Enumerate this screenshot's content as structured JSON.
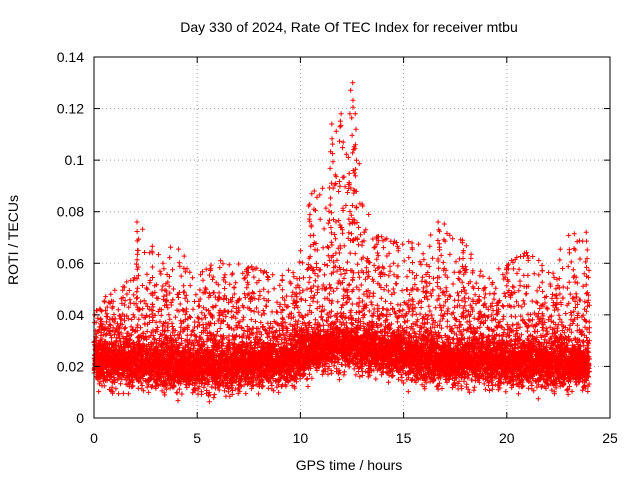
{
  "chart_data": {
    "type": "scatter",
    "title": "Day 330 of 2024, Rate Of TEC Index for receiver mtbu",
    "xlabel": "GPS time / hours",
    "ylabel": "ROTI / TECUs",
    "xlim": [
      0,
      25
    ],
    "ylim": [
      0,
      0.14
    ],
    "x_ticks": [
      0,
      5,
      10,
      15,
      20,
      25
    ],
    "x_tick_labels": [
      "0",
      "5",
      "10",
      "15",
      "20",
      "25"
    ],
    "y_ticks": [
      0,
      0.02,
      0.04,
      0.06,
      0.08,
      0.1,
      0.12,
      0.14
    ],
    "y_tick_labels": [
      "0",
      "0.02",
      "0.04",
      "0.06",
      "0.08",
      "0.1",
      "0.12",
      "0.14"
    ],
    "grid": true,
    "marker": "+",
    "point_color": "#ff0000",
    "data_hours": [
      0,
      24
    ],
    "envelope": {
      "x": [
        0,
        1,
        2,
        2.2,
        3,
        4,
        5,
        6,
        7,
        8,
        9,
        10,
        10.5,
        11,
        11.5,
        12,
        12.5,
        13,
        13.5,
        14,
        15,
        16,
        17,
        18,
        19,
        20,
        21,
        22,
        23,
        24
      ],
      "baseline": [
        0.022,
        0.021,
        0.021,
        0.021,
        0.021,
        0.02,
        0.02,
        0.019,
        0.02,
        0.021,
        0.021,
        0.024,
        0.026,
        0.027,
        0.028,
        0.028,
        0.028,
        0.027,
        0.026,
        0.026,
        0.024,
        0.023,
        0.022,
        0.022,
        0.022,
        0.021,
        0.021,
        0.021,
        0.021,
        0.021
      ],
      "upper": [
        0.045,
        0.05,
        0.055,
        0.076,
        0.065,
        0.068,
        0.055,
        0.063,
        0.06,
        0.058,
        0.055,
        0.065,
        0.088,
        0.09,
        0.105,
        0.12,
        0.13,
        0.09,
        0.073,
        0.07,
        0.068,
        0.07,
        0.076,
        0.068,
        0.055,
        0.06,
        0.065,
        0.058,
        0.072,
        0.072
      ],
      "lower": [
        0.01,
        0.008,
        0.008,
        0.008,
        0.008,
        0.006,
        0.006,
        0.004,
        0.006,
        0.008,
        0.008,
        0.01,
        0.012,
        0.012,
        0.012,
        0.012,
        0.012,
        0.012,
        0.012,
        0.012,
        0.01,
        0.01,
        0.01,
        0.01,
        0.009,
        0.008,
        0.006,
        0.008,
        0.008,
        0.008
      ]
    },
    "notable_peaks": [
      {
        "x": 2.1,
        "y": 0.076
      },
      {
        "x": 10.5,
        "y": 0.087
      },
      {
        "x": 11.5,
        "y": 0.114
      },
      {
        "x": 12.5,
        "y": 0.13
      },
      {
        "x": 12.7,
        "y": 0.118
      },
      {
        "x": 16.7,
        "y": 0.076
      },
      {
        "x": 17.9,
        "y": 0.068
      },
      {
        "x": 23.9,
        "y": 0.072
      }
    ],
    "sampling_minutes": 1
  }
}
